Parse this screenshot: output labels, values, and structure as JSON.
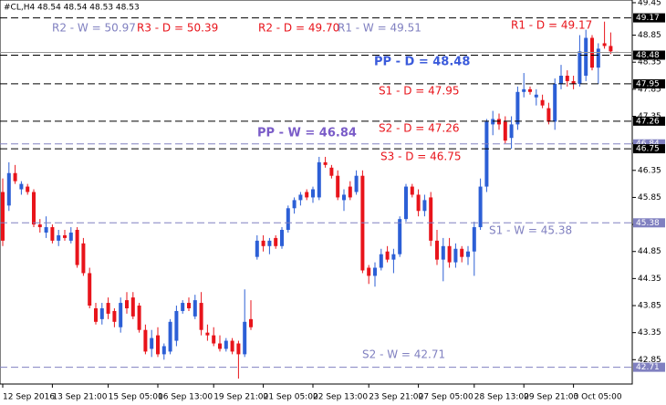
{
  "chart_data": {
    "type": "candlestick",
    "header": "#CL,H4  48.54 48.54 48.53 48.53",
    "up_color": "#2c5fd6",
    "down_color": "#e8141b",
    "ylim": [
      42.4,
      49.5
    ],
    "yticks": [
      49.45,
      48.85,
      48.35,
      47.85,
      47.35,
      46.85,
      46.35,
      45.85,
      45.35,
      44.85,
      44.35,
      43.85,
      43.35,
      42.85
    ],
    "x": [
      "12 Sep 2016",
      null,
      null,
      null,
      null,
      null,
      null,
      null,
      "13 Sep 21:00",
      null,
      null,
      null,
      null,
      null,
      null,
      null,
      null,
      "15 Sep 05:00",
      null,
      null,
      null,
      null,
      null,
      null,
      null,
      "16 Sep 13:00",
      null,
      null,
      null,
      null,
      null,
      null,
      null,
      null,
      "19 Sep 21:00",
      null,
      null,
      null,
      null,
      null,
      null,
      null,
      "21 Sep 05:00",
      null,
      null,
      null,
      null,
      null,
      null,
      null,
      "22 Sep 13:00",
      null,
      null,
      null,
      null,
      null,
      null,
      null,
      null,
      "23 Sep 21:00",
      null,
      null,
      null,
      null,
      null,
      null,
      null,
      "27 Sep 05:00",
      null,
      null,
      null,
      null,
      null,
      null,
      null,
      null,
      "28 Sep 13:00",
      null,
      null,
      null,
      null,
      null,
      null,
      null,
      "29 Sep 21:00",
      null,
      null,
      null,
      null,
      null,
      null,
      null,
      "3 Oct 05:00",
      null,
      null,
      null,
      null,
      null,
      null,
      null
    ],
    "ohlc": [
      [
        45.95,
        46.2,
        44.95,
        45.05
      ],
      [
        45.7,
        46.5,
        45.6,
        46.3
      ],
      [
        46.3,
        46.45,
        46.1,
        46.15
      ],
      [
        46.0,
        46.15,
        45.9,
        46.1
      ],
      [
        46.05,
        46.1,
        45.9,
        45.95
      ],
      [
        45.95,
        46.0,
        45.3,
        45.35
      ],
      [
        45.35,
        45.45,
        45.2,
        45.3
      ],
      [
        45.2,
        45.5,
        45.1,
        45.3
      ],
      [
        45.3,
        45.35,
        45.0,
        45.05
      ],
      [
        45.05,
        45.25,
        44.95,
        45.15
      ],
      [
        45.15,
        45.25,
        45.05,
        45.1
      ],
      [
        45.05,
        45.3,
        45.0,
        45.2
      ],
      [
        45.25,
        45.3,
        44.55,
        44.6
      ],
      [
        45.0,
        45.1,
        44.4,
        44.45
      ],
      [
        44.45,
        44.55,
        43.8,
        43.85
      ],
      [
        43.8,
        43.9,
        43.5,
        43.55
      ],
      [
        43.6,
        43.9,
        43.5,
        43.8
      ],
      [
        43.9,
        44.0,
        43.6,
        43.7
      ],
      [
        43.75,
        43.8,
        43.45,
        43.55
      ],
      [
        43.45,
        44.0,
        43.35,
        43.9
      ],
      [
        43.95,
        44.1,
        43.7,
        43.8
      ],
      [
        44.0,
        44.1,
        43.6,
        43.65
      ],
      [
        43.85,
        43.9,
        43.35,
        43.4
      ],
      [
        43.4,
        43.5,
        42.95,
        43.0
      ],
      [
        43.05,
        43.4,
        42.9,
        43.25
      ],
      [
        43.3,
        43.45,
        42.9,
        42.95
      ],
      [
        42.95,
        43.15,
        42.85,
        43.1
      ],
      [
        43.0,
        43.6,
        42.95,
        43.55
      ],
      [
        43.2,
        43.85,
        43.1,
        43.75
      ],
      [
        43.75,
        43.95,
        43.7,
        43.9
      ],
      [
        43.9,
        44.0,
        43.75,
        43.8
      ],
      [
        43.65,
        44.05,
        43.6,
        43.95
      ],
      [
        43.9,
        44.1,
        43.3,
        43.4
      ],
      [
        43.35,
        43.5,
        43.2,
        43.3
      ],
      [
        43.3,
        43.45,
        43.1,
        43.15
      ],
      [
        43.15,
        43.3,
        43.0,
        43.05
      ],
      [
        43.05,
        43.25,
        43.0,
        43.2
      ],
      [
        43.2,
        43.25,
        42.95,
        43.0
      ],
      [
        43.15,
        43.2,
        42.5,
        42.95
      ],
      [
        42.95,
        44.15,
        42.9,
        43.55
      ],
      [
        43.6,
        43.95,
        43.4,
        43.45
      ],
      [
        44.75,
        45.15,
        44.7,
        45.05
      ],
      [
        45.05,
        45.15,
        44.85,
        44.95
      ],
      [
        44.95,
        45.1,
        44.8,
        45.05
      ],
      [
        45.1,
        45.15,
        44.9,
        44.95
      ],
      [
        44.95,
        45.3,
        44.9,
        45.25
      ],
      [
        45.25,
        45.7,
        45.2,
        45.65
      ],
      [
        45.65,
        45.85,
        45.55,
        45.8
      ],
      [
        45.8,
        45.95,
        45.7,
        45.9
      ],
      [
        45.95,
        46.0,
        45.8,
        45.85
      ],
      [
        45.85,
        46.05,
        45.75,
        46.0
      ],
      [
        45.85,
        46.6,
        45.8,
        46.5
      ],
      [
        46.5,
        46.6,
        46.4,
        46.45
      ],
      [
        46.4,
        46.45,
        46.2,
        46.25
      ],
      [
        46.25,
        46.35,
        45.8,
        45.85
      ],
      [
        45.8,
        46.0,
        45.6,
        45.9
      ],
      [
        46.05,
        46.15,
        45.8,
        45.85
      ],
      [
        45.95,
        46.35,
        45.9,
        46.25
      ],
      [
        46.25,
        46.35,
        44.45,
        44.5
      ],
      [
        44.55,
        44.6,
        44.25,
        44.4
      ],
      [
        44.4,
        44.65,
        44.2,
        44.55
      ],
      [
        44.55,
        44.9,
        44.5,
        44.8
      ],
      [
        44.85,
        44.95,
        44.65,
        44.7
      ],
      [
        44.7,
        44.9,
        44.45,
        44.8
      ],
      [
        44.8,
        45.5,
        44.75,
        45.45
      ],
      [
        45.45,
        46.1,
        45.4,
        46.05
      ],
      [
        46.05,
        46.1,
        45.85,
        45.9
      ],
      [
        45.9,
        46.0,
        45.5,
        45.6
      ],
      [
        45.6,
        45.9,
        45.5,
        45.8
      ],
      [
        45.85,
        45.95,
        44.95,
        45.05
      ],
      [
        45.05,
        45.25,
        44.6,
        44.7
      ],
      [
        44.7,
        45.1,
        44.3,
        44.95
      ],
      [
        44.95,
        45.1,
        44.55,
        44.65
      ],
      [
        44.65,
        45.0,
        44.55,
        44.9
      ],
      [
        44.9,
        44.95,
        44.65,
        44.75
      ],
      [
        44.75,
        44.95,
        44.6,
        44.85
      ],
      [
        44.85,
        45.4,
        44.4,
        45.3
      ],
      [
        45.3,
        46.2,
        45.25,
        46.05
      ],
      [
        46.05,
        47.3,
        45.95,
        47.25
      ],
      [
        47.2,
        47.45,
        47.0,
        47.3
      ],
      [
        47.3,
        47.4,
        47.1,
        47.2
      ],
      [
        47.25,
        47.35,
        46.85,
        46.9
      ],
      [
        46.95,
        47.35,
        46.75,
        47.2
      ],
      [
        47.2,
        47.9,
        47.1,
        47.8
      ],
      [
        47.8,
        48.15,
        47.7,
        47.85
      ],
      [
        47.85,
        47.9,
        47.75,
        47.8
      ],
      [
        47.7,
        47.85,
        47.55,
        47.75
      ],
      [
        47.65,
        47.75,
        47.5,
        47.55
      ],
      [
        47.5,
        47.6,
        47.2,
        47.25
      ],
      [
        47.25,
        48.05,
        47.1,
        47.95
      ],
      [
        47.95,
        48.3,
        47.85,
        48.1
      ],
      [
        48.1,
        48.2,
        47.9,
        48.0
      ],
      [
        48.0,
        48.1,
        47.85,
        47.95
      ],
      [
        47.95,
        48.85,
        47.9,
        48.55
      ],
      [
        48.1,
        48.95,
        48.0,
        48.8
      ],
      [
        48.8,
        48.85,
        48.2,
        48.25
      ],
      [
        48.25,
        48.7,
        47.95,
        48.6
      ],
      [
        48.7,
        49.1,
        48.6,
        48.65
      ],
      [
        48.65,
        48.9,
        48.5,
        48.55
      ],
      [
        48.54,
        48.54,
        48.53,
        48.53
      ]
    ],
    "levels": [
      {
        "label": "R1 - D = 49.17",
        "value": 49.17,
        "color": "#e8141b",
        "line": "#000000"
      },
      {
        "label": "PP - D = 48.48",
        "value": 48.48,
        "color": "#3b5bdb",
        "line": "#000000",
        "bold": true
      },
      {
        "label": "S1 - D = 47.95",
        "value": 47.95,
        "color": "#e8141b",
        "line": "#000000"
      },
      {
        "label": "S2 - D = 47.26",
        "value": 47.26,
        "color": "#e8141b",
        "line": "#000000"
      },
      {
        "label": "PP - W = 46.84",
        "value": 46.84,
        "color": "#7a5cc8",
        "line": "#8080c0",
        "bold": true
      },
      {
        "label": "S3 - D = 46.75",
        "value": 46.75,
        "color": "#e8141b",
        "line": "#000000"
      },
      {
        "label": "S1 - W = 45.38",
        "value": 45.38,
        "color": "#8080c0",
        "line": "#8080c0"
      },
      {
        "label": "S2 - W = 42.71",
        "value": 42.71,
        "color": "#8080c0",
        "line": "#8080c0"
      }
    ],
    "annotations": [
      {
        "label": "R2 - W = 50.97",
        "color": "#8080c0"
      },
      {
        "label": "R3 - D = 50.39",
        "color": "#e8141b"
      },
      {
        "label": "R2 - D = 49.70",
        "color": "#e8141b"
      },
      {
        "label": "R1 - W = 49.51",
        "color": "#8080c0"
      }
    ]
  }
}
